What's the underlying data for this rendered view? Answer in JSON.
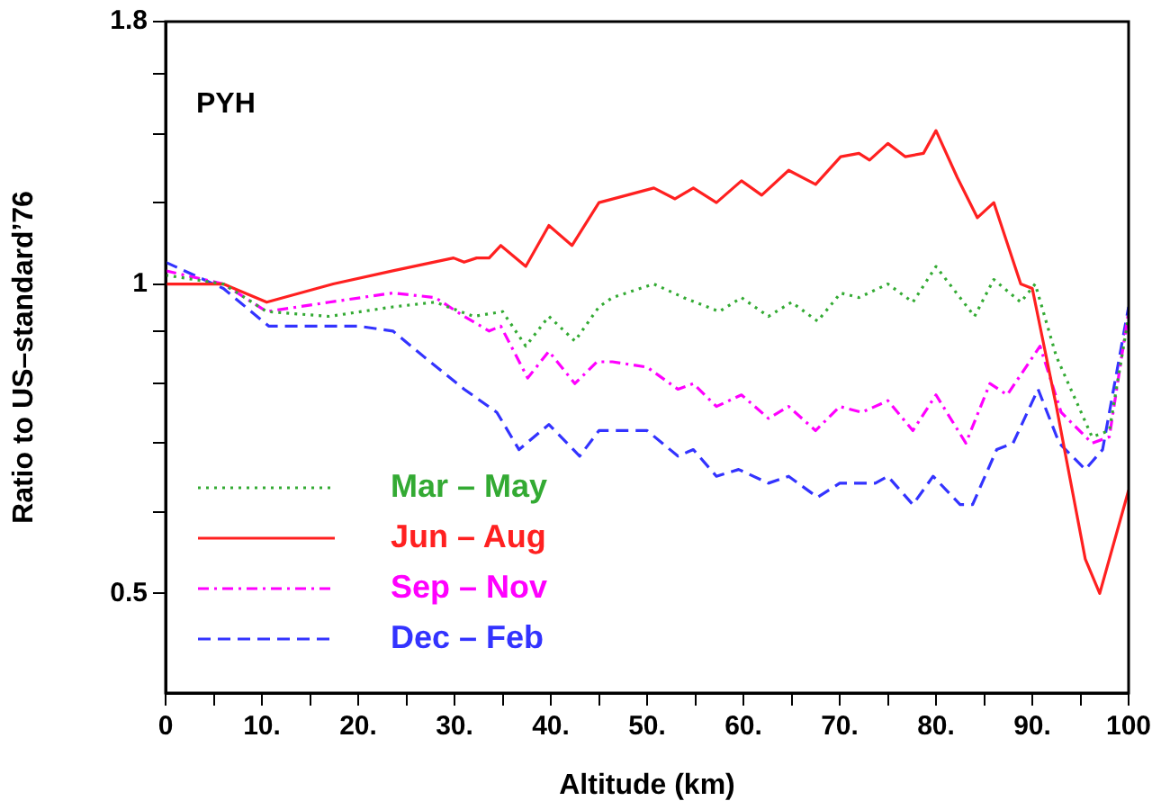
{
  "chart_data": {
    "type": "line",
    "xlabel": "Altitude (km)",
    "ylabel": "Ratio to US–standard’76",
    "annotations": [
      "PYH"
    ],
    "xlim": [
      0,
      100
    ],
    "xticks": [
      0,
      {
        "value": 5,
        "label": null
      },
      {
        "value": 10,
        "label": "10."
      },
      {
        "value": 15,
        "label": null
      },
      {
        "value": 20,
        "label": "20."
      },
      {
        "value": 25,
        "label": null
      },
      {
        "value": 30,
        "label": "30."
      },
      {
        "value": 35,
        "label": null
      },
      {
        "value": 40,
        "label": "40."
      },
      {
        "value": 45,
        "label": null
      },
      {
        "value": 50,
        "label": "50."
      },
      {
        "value": 55,
        "label": null
      },
      {
        "value": 60,
        "label": "60."
      },
      {
        "value": 65,
        "label": null
      },
      {
        "value": 70,
        "label": "70."
      },
      {
        "value": 75,
        "label": null
      },
      {
        "value": 80,
        "label": "80."
      },
      {
        "value": 85,
        "label": null
      },
      {
        "value": 90,
        "label": "90."
      },
      {
        "value": 95,
        "label": null
      },
      100
    ],
    "ylim": [
      0.4,
      1.8
    ],
    "log": "y",
    "yticks": [
      0.5,
      {
        "value": 0.6,
        "label": null
      },
      {
        "value": 0.7,
        "label": null
      },
      {
        "value": 0.8,
        "label": null
      },
      {
        "value": 0.9,
        "label": null
      },
      1,
      {
        "value": 1.2,
        "label": null
      },
      {
        "value": 1.4,
        "label": null
      },
      {
        "value": 1.6,
        "label": null
      },
      1.8
    ],
    "grid": false,
    "legend": "bottom left",
    "marker": "none",
    "series": [
      {
        "name": "Mar – May",
        "color": "#33aa33",
        "line_style": "dotted",
        "x": [
          0,
          6,
          10.5,
          17,
          23.6,
          28,
          32,
          35,
          37.4,
          39.8,
          42.5,
          45,
          46.4,
          50.7,
          53.8,
          57.5,
          59.8,
          62.6,
          65,
          67.7,
          70.1,
          72,
          75,
          77.6,
          80,
          84,
          86,
          88.8,
          90.3,
          92.5,
          96.2,
          98,
          100
        ],
        "values": [
          1.02,
          1.0,
          0.94,
          0.93,
          0.95,
          0.96,
          0.93,
          0.94,
          0.87,
          0.93,
          0.88,
          0.95,
          0.97,
          1.0,
          0.97,
          0.94,
          0.97,
          0.93,
          0.96,
          0.92,
          0.98,
          0.97,
          1.0,
          0.96,
          1.04,
          0.93,
          1.01,
          0.96,
          1.0,
          0.85,
          0.71,
          0.72,
          0.93
        ]
      },
      {
        "name": "Jun – Aug",
        "color": "#ff2020",
        "line_style": "solid",
        "x": [
          0,
          6,
          10.5,
          17.4,
          23.6,
          29.9,
          31,
          32.3,
          33.6,
          34.8,
          37.4,
          39.8,
          42.2,
          45,
          47.9,
          50.7,
          52.9,
          54.8,
          57.2,
          59.8,
          61.9,
          64.7,
          67.5,
          70.1,
          72,
          73.1,
          75,
          76.8,
          78.7,
          80,
          82.2,
          84.3,
          86,
          88.8,
          90,
          92.5,
          95.5,
          97,
          100
        ],
        "values": [
          1.0,
          1.0,
          0.96,
          1.0,
          1.03,
          1.06,
          1.05,
          1.06,
          1.06,
          1.09,
          1.04,
          1.14,
          1.09,
          1.2,
          1.22,
          1.24,
          1.21,
          1.24,
          1.2,
          1.26,
          1.22,
          1.29,
          1.25,
          1.33,
          1.34,
          1.32,
          1.37,
          1.33,
          1.34,
          1.41,
          1.27,
          1.16,
          1.2,
          1.0,
          0.99,
          0.76,
          0.54,
          0.5,
          0.63
        ]
      },
      {
        "name": "Sep – Nov",
        "color": "#ff00ff",
        "line_style": "dashdot",
        "x": [
          0,
          6,
          10.5,
          17,
          23.6,
          28,
          31,
          33.6,
          34.8,
          37.6,
          39.8,
          42.5,
          44.8,
          46.4,
          50,
          53.2,
          54.8,
          57.2,
          59.8,
          62.6,
          64.7,
          67.5,
          70,
          72.3,
          75,
          77.6,
          80,
          83.1,
          85.6,
          87.4,
          90.8,
          93,
          96.2,
          98,
          100
        ],
        "values": [
          1.03,
          1.0,
          0.94,
          0.96,
          0.98,
          0.97,
          0.93,
          0.9,
          0.91,
          0.81,
          0.86,
          0.8,
          0.84,
          0.84,
          0.83,
          0.79,
          0.8,
          0.76,
          0.78,
          0.74,
          0.76,
          0.72,
          0.76,
          0.75,
          0.77,
          0.72,
          0.78,
          0.7,
          0.8,
          0.78,
          0.87,
          0.75,
          0.7,
          0.71,
          0.94
        ]
      },
      {
        "name": "Dec – Feb",
        "color": "#3333ff",
        "line_style": "dashed",
        "x": [
          0,
          6,
          10.7,
          20,
          23.6,
          26.8,
          31,
          34.4,
          36.7,
          39.8,
          43,
          45,
          46.4,
          50,
          53.2,
          54.8,
          57.2,
          59.5,
          62.6,
          64.7,
          67.7,
          70,
          73.7,
          75,
          77.6,
          79.7,
          82.5,
          83.8,
          86.3,
          88,
          90.6,
          92.8,
          95.5,
          97.3,
          100
        ],
        "values": [
          1.05,
          0.99,
          0.91,
          0.91,
          0.9,
          0.85,
          0.79,
          0.75,
          0.69,
          0.73,
          0.68,
          0.72,
          0.72,
          0.72,
          0.68,
          0.69,
          0.65,
          0.66,
          0.64,
          0.65,
          0.62,
          0.64,
          0.64,
          0.65,
          0.61,
          0.65,
          0.61,
          0.61,
          0.69,
          0.7,
          0.79,
          0.7,
          0.66,
          0.69,
          0.95
        ]
      }
    ]
  }
}
